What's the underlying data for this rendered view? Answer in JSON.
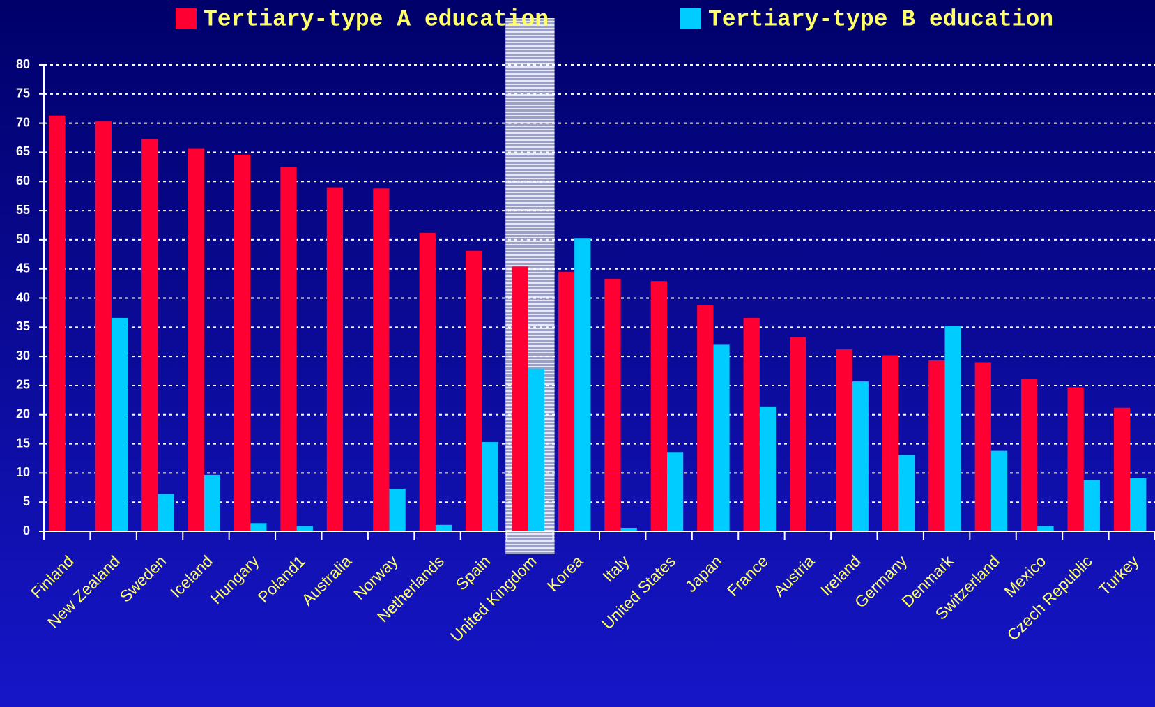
{
  "chart_data": {
    "type": "bar",
    "categories": [
      "Finland",
      "New Zealand",
      "Sweden",
      "Iceland",
      "Hungary",
      "Poland1",
      "Australia",
      "Norway",
      "Netherlands",
      "Spain",
      "United Kingdom",
      "Korea",
      "Italy",
      "United States",
      "Japan",
      "France",
      "Austria",
      "Ireland",
      "Germany",
      "Denmark",
      "Switzerland",
      "Mexico",
      "Czech Republic",
      "Turkey"
    ],
    "series": [
      {
        "name": "Tertiary-type A education",
        "color": "#ff0033",
        "values": [
          71.3,
          70.3,
          67.3,
          65.7,
          64.6,
          62.5,
          59,
          58.8,
          51.2,
          48.1,
          45.4,
          44.5,
          43.3,
          42.9,
          38.8,
          36.6,
          33.3,
          31.2,
          30.2,
          29.3,
          29,
          26.1,
          24.7,
          21.2
        ]
      },
      {
        "name": "Tertiary-type B education",
        "color": "#00ccff",
        "values": [
          null,
          36.6,
          6.4,
          9.7,
          1.4,
          0.9,
          null,
          7.3,
          1.1,
          15.3,
          27.9,
          50.2,
          0.6,
          13.6,
          32,
          21.3,
          null,
          25.7,
          13.1,
          35.2,
          13.8,
          0.9,
          8.8,
          9.1
        ]
      }
    ],
    "ylim": [
      0,
      80
    ],
    "yticks": [
      0,
      5,
      10,
      15,
      20,
      25,
      30,
      35,
      40,
      45,
      50,
      55,
      60,
      65,
      70,
      75,
      80
    ],
    "grid": true
  }
}
